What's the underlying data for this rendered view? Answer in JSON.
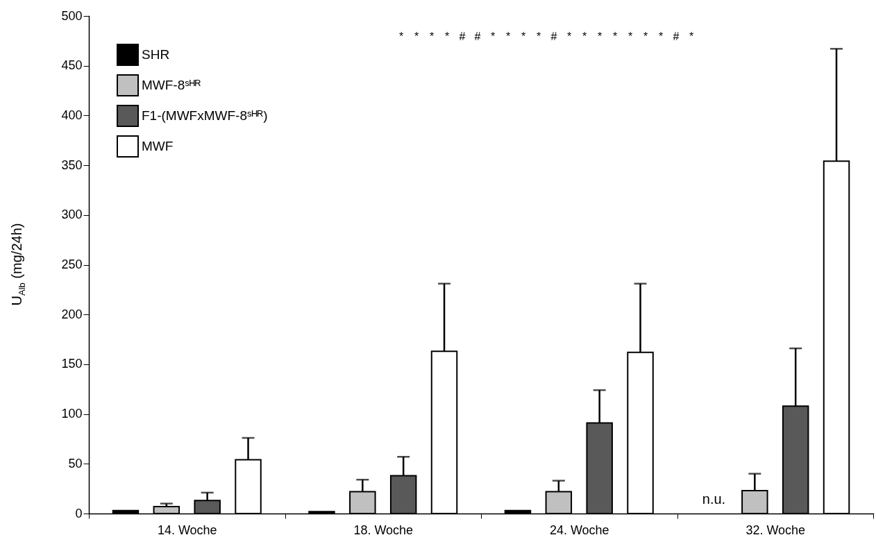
{
  "chart_data": {
    "type": "bar",
    "ylabel": "U$_{Alb}$ (mg/24h)",
    "categories": [
      "14. Woche",
      "18. Woche",
      "24. Woche",
      "32. Woche"
    ],
    "series": [
      {
        "name": "SHR",
        "color": "#000000",
        "values": [
          3,
          2,
          3,
          null
        ],
        "errors": [
          null,
          null,
          null,
          null
        ],
        "value_labels": [
          null,
          null,
          null,
          "n.u."
        ]
      },
      {
        "name": "MWF-8ˢᴴᴿ",
        "color": "#c0c0c0",
        "values": [
          7,
          22,
          22,
          23
        ],
        "errors": [
          [
            7,
            10
          ],
          [
            22,
            34
          ],
          [
            22,
            33
          ],
          [
            23,
            40
          ]
        ]
      },
      {
        "name": "F1-(MWFxMWF-8ˢᴴᴿ)",
        "color": "#595959",
        "values": [
          13,
          38,
          91,
          108
        ],
        "errors": [
          [
            13,
            21
          ],
          [
            38,
            57
          ],
          [
            91,
            124
          ],
          [
            108,
            166
          ]
        ]
      },
      {
        "name": "MWF",
        "color": "#ffffff",
        "values": [
          54,
          163,
          162,
          354
        ],
        "errors": [
          [
            54,
            76
          ],
          [
            163,
            231
          ],
          [
            162,
            231
          ],
          [
            354,
            467
          ]
        ]
      }
    ],
    "ylim": [
      0,
      500
    ],
    "yticks": [
      0,
      50,
      100,
      150,
      200,
      250,
      300,
      350,
      400,
      450,
      500
    ],
    "grid": false,
    "legend": "top left",
    "annotations": [
      "*",
      "*",
      "*",
      "*",
      "#",
      "#",
      "*",
      "*",
      "*",
      "*",
      "#",
      "*",
      "*",
      "*",
      "*",
      "*",
      "*",
      "*",
      "#",
      "*"
    ]
  }
}
